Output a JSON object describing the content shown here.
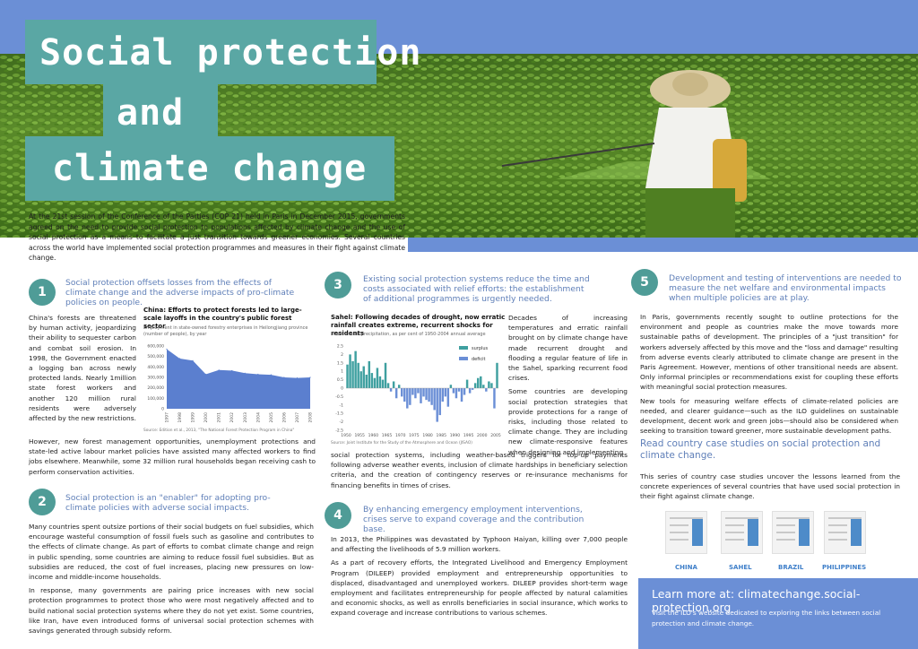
{
  "title": {
    "line1": "Social protection",
    "line2": "and",
    "line3": "climate change"
  },
  "intro": "At the 21st session of the Conference of the Parties (COP 21) held in Paris in December 2015, governments agreed on the need to provide social protection to populations affected by climate change and the use of social protection as a means to facilitate a just transition towards greener economies. Several countries across the world have implemented social protection programmes and measures in their fight against climate change.",
  "section1": {
    "num": "1",
    "heading": "Social protection offsets losses from the effects of climate change and the adverse impacts of pro-climate policies on people.",
    "text_left": "China's forests are threatened by human activity, jeopardizing their ability to sequester carbon and combat soil erosion. In 1998, the Government enacted a logging ban across newly protected lands. Nearly 1million state forest workers and another 120 million rural residents were adversely affected by the new restrictions.",
    "text_bottom": "However, new forest management opportunities, unemployment protections and state-led active labour market policies have assisted many affected workers to find jobs elsewhere. Meanwhile, some 32 million rural households began receiving cash to perform conservation activities."
  },
  "section2": {
    "num": "2",
    "heading": "Social protection is an \"enabler\" for adopting pro-climate policies with adverse social impacts.",
    "p1": "Many countries spent outsize portions of their social budgets on fuel subsidies, which encourage wasteful consumption of fossil fuels such as gasoline and contributes to the effects of climate change. As part of efforts to combat climate change and reign in public spending, some countries are aiming to reduce fossil fuel subsidies. But as subsidies are reduced, the cost of fuel increases, placing new pressures on low-income and middle-income households.",
    "p2": "In response, many governments are pairing price increases with new social protection programmes to protect those who were most negatively affected and to build national social protection systems where they do not yet exist. Some countries, like Iran, have even introduced forms of universal social protection schemes with savings generated through subsidy reform."
  },
  "section3": {
    "num": "3",
    "heading": "Existing social protection systems reduce the time and costs associated with relief efforts: the establishment of additional programmes is urgently needed.",
    "p1": "Decades of increasing temperatures and erratic rainfall brought on by climate change have made recurrent drought and flooding a regular feature of life in the Sahel, sparking recurrent food crises.",
    "p2": "Some countries are developing social protection strategies that provide protections for a range of risks, including those related to climate change. They are including new climate-responsive features when designing and implementing",
    "p3": "social protection systems, including weather-based triggers for top-up payments following adverse weather events, inclusion of climate hardships in beneficiary selection criteria, and the creation of contingency reserves or re-insurance mechanisms for financing benefits in times of crises."
  },
  "section4": {
    "num": "4",
    "heading": "By enhancing emergency employment interventions, crises serve to expand coverage and the contribution base.",
    "p1": "In 2013, the Philippines was devastated by Typhoon Haiyan, killing over 7,000 people and affecting the livelihoods of 5.9 million workers.",
    "p2": "As a part of recovery efforts, the Integrated Livelihood and Emergency Employment Program (DILEEP) provided employment and entrepreneurship opportunities to displaced, disadvantaged and unemployed workers. DILEEP provides short-term wage employment and facilitates entrepreneurship for people affected by natural calamities and economic shocks, as well as enrolls beneficiaries in social insurance, which works to expand coverage and increase contributions to various schemes."
  },
  "section5": {
    "num": "5",
    "heading": "Development and testing of interventions are needed to measure the net welfare and environmental impacts when multiple policies are at play.",
    "p1": "In Paris, governments recently sought to outline protections for the environment and people as countries make the move towards more sustainable paths of development. The principles of a \"just transition\" for workers adversely affected by this move and the \"loss and damage\" resulting from adverse events clearly attributed to climate change are present in the Paris Agreement. However, mentions of other transitional needs are absent. Only informal principles or recommendations exist for coupling these efforts with meaningful social protection measures.",
    "p2": "New tools for measuring welfare effects of climate-related policies are needed, and clearer guidance—such as the ILO guidelines on sustainable development, decent work and green jobs—should also be considered when seeking to transition toward greener, more sustainable development paths."
  },
  "case_studies": {
    "heading": "Read country case studies on social protection and climate change.",
    "text": "This series of country case studies uncover the lessons learned from the concrete experiences of several countries that have used social protection in their fight against climate change.",
    "countries": [
      "CHINA",
      "SAHEL",
      "BRAZIL",
      "PHILIPPINES"
    ]
  },
  "learn_more": {
    "title": "Learn more at: climatechange.social-protection.org",
    "text": "Visit the ILO's website dedicated to exploring the links between social protection and climate change."
  },
  "chart_data": [
    {
      "type": "area",
      "title": "China: Efforts to protect forests led to large-scale layoffs in the country's public forest sector",
      "subtitle": "Employment in state-owned forestry enterprises in Heilongjiang province (number of people), by year",
      "source": "Source: Edition et al., 2013, \"The National Forest Protection Program in China\"",
      "x": [
        "1997",
        "1998",
        "1999",
        "2000",
        "2001",
        "2002",
        "2003",
        "2004",
        "2005",
        "2006",
        "2007",
        "2008"
      ],
      "values": [
        570000,
        480000,
        460000,
        330000,
        370000,
        365000,
        340000,
        330000,
        325000,
        300000,
        295000,
        300000
      ],
      "y_ticks": [
        "600,000",
        "500,000",
        "400,000",
        "300,000",
        "200,000",
        "100,000",
        "0"
      ],
      "ylim": [
        0,
        600000
      ],
      "color": "#5b7fcf"
    },
    {
      "type": "bar",
      "title": "Sahel: Following decades of drought, now erratic rainfall creates extreme, recurrent shocks for residents",
      "subtitle": "Mean annual precipitation, as per cent of 1950-2004 annual average",
      "source": "Source: Joint Institute for the Study of the Atmosphere and Ocean (JISAO)",
      "legend": [
        "surplus",
        "deficit"
      ],
      "colors": {
        "surplus": "#3fa0a0",
        "deficit": "#6b8fd6"
      },
      "ylim": [
        -2.5,
        2.5
      ],
      "y_ticks": [
        "2.5",
        "2",
        "1.5",
        "1",
        "0.5",
        "0",
        "-0.5",
        "-1",
        "-1.5",
        "-2",
        "-2.5"
      ],
      "x_ticks": [
        "1950",
        "1955",
        "1960",
        "1965",
        "1970",
        "1975",
        "1980",
        "1985",
        "1990",
        "1995",
        "2000",
        "2005"
      ],
      "x_start": 1950,
      "values": [
        1.4,
        2.0,
        1.6,
        2.2,
        1.5,
        1.0,
        1.3,
        0.8,
        1.6,
        0.9,
        0.6,
        1.2,
        0.7,
        0.5,
        1.5,
        0.3,
        -0.2,
        0.4,
        -0.6,
        0.2,
        -0.5,
        -0.8,
        -1.2,
        -1.0,
        -0.4,
        -0.6,
        -0.3,
        -0.9,
        -0.5,
        -0.7,
        -0.8,
        -1.0,
        -1.3,
        -2.0,
        -1.6,
        -0.8,
        -0.5,
        -1.1,
        0.2,
        -0.3,
        -0.6,
        -0.2,
        -0.8,
        -0.4,
        0.5,
        -0.3,
        -0.1,
        0.3,
        0.6,
        0.7,
        0.2,
        -0.2,
        0.4,
        0.3,
        -1.2,
        1.5
      ]
    }
  ]
}
